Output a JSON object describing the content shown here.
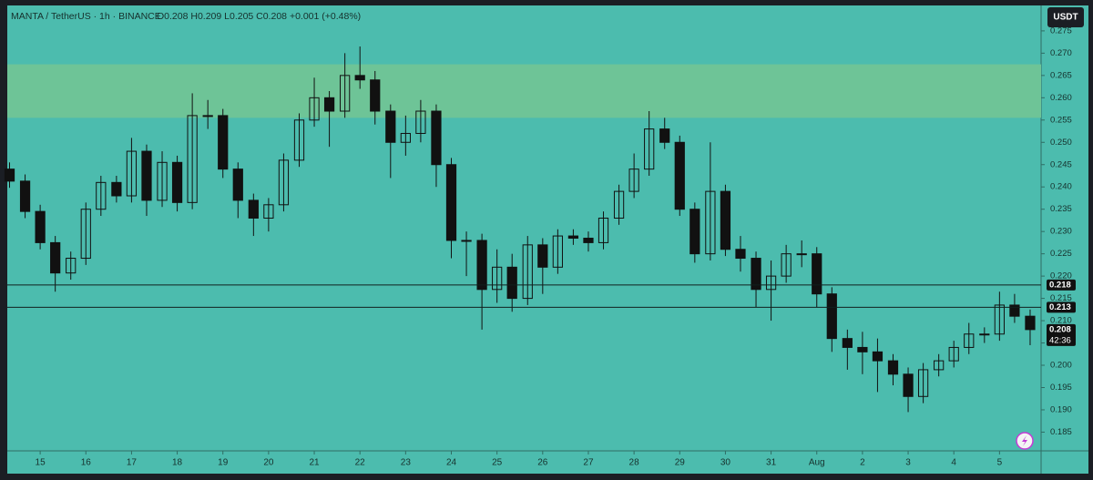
{
  "chart_data": {
    "type": "candlestick",
    "title": "MANTA / TetherUS · 1h · BINANCE",
    "ohlc_text": "O0.208 H0.209 L0.205 C0.208 +0.001 (+0.48%)",
    "currency": "USDT",
    "countdown": "42:36",
    "candle_color": "#111111",
    "background": "#4cbcae",
    "zone": {
      "range": [
        0.2555,
        0.2675
      ],
      "color": "#6ec497"
    },
    "levels": [
      0.218,
      0.213
    ],
    "last_price": 0.208,
    "x": [
      14.33,
      14.67,
      15,
      15.33,
      15.67,
      16,
      16.33,
      16.67,
      17,
      17.33,
      17.67,
      18,
      18.33,
      18.67,
      19,
      19.33,
      19.67,
      20,
      20.33,
      20.67,
      21,
      21.33,
      21.67,
      22,
      22.33,
      22.67,
      23,
      23.33,
      23.67,
      24,
      24.33,
      24.67,
      25,
      25.33,
      25.67,
      26,
      26.33,
      26.67,
      27,
      27.33,
      27.67,
      28,
      28.33,
      28.67,
      29,
      29.33,
      29.67,
      30,
      30.33,
      30.67,
      31,
      31.33,
      31.67,
      32,
      32.33,
      32.67,
      33,
      33.33,
      33.67,
      34,
      34.33,
      34.67,
      35,
      35.33,
      35.67,
      36,
      36.33,
      36.67
    ],
    "open": [
      0.244,
      0.2413,
      0.2345,
      0.2275,
      0.2207,
      0.224,
      0.235,
      0.241,
      0.238,
      0.248,
      0.237,
      0.2455,
      0.2365,
      0.256,
      0.256,
      0.244,
      0.237,
      0.233,
      0.236,
      0.246,
      0.255,
      0.26,
      0.257,
      0.265,
      0.264,
      0.257,
      0.25,
      0.252,
      0.257,
      0.245,
      0.228,
      0.228,
      0.217,
      0.222,
      0.215,
      0.227,
      0.222,
      0.229,
      0.2285,
      0.2275,
      0.233,
      0.239,
      0.244,
      0.253,
      0.25,
      0.235,
      0.225,
      0.239,
      0.226,
      0.224,
      0.217,
      0.22,
      0.225,
      0.225,
      0.216,
      0.206,
      0.204,
      0.203,
      0.201,
      0.198,
      0.193,
      0.199,
      0.201,
      0.204,
      0.207,
      0.207,
      0.2135,
      0.211
    ],
    "high": [
      0.2455,
      0.2428,
      0.236,
      0.229,
      0.2255,
      0.2365,
      0.2425,
      0.2425,
      0.251,
      0.2495,
      0.248,
      0.247,
      0.261,
      0.2595,
      0.2575,
      0.2455,
      0.2385,
      0.2375,
      0.2475,
      0.2565,
      0.2645,
      0.2615,
      0.27,
      0.2715,
      0.266,
      0.2585,
      0.256,
      0.2595,
      0.2585,
      0.2465,
      0.23,
      0.2295,
      0.226,
      0.225,
      0.229,
      0.2285,
      0.2305,
      0.2305,
      0.23,
      0.2345,
      0.2405,
      0.2475,
      0.257,
      0.2555,
      0.2515,
      0.2365,
      0.25,
      0.2405,
      0.229,
      0.2255,
      0.2235,
      0.227,
      0.228,
      0.2265,
      0.2175,
      0.208,
      0.2075,
      0.206,
      0.2025,
      0.1995,
      0.2005,
      0.2025,
      0.2055,
      0.2095,
      0.2085,
      0.2165,
      0.216,
      0.2125
    ],
    "low": [
      0.2398,
      0.233,
      0.226,
      0.2165,
      0.2192,
      0.2225,
      0.2335,
      0.2365,
      0.2365,
      0.2335,
      0.2355,
      0.2345,
      0.235,
      0.253,
      0.242,
      0.233,
      0.229,
      0.23,
      0.2345,
      0.2445,
      0.2535,
      0.249,
      0.2555,
      0.262,
      0.254,
      0.242,
      0.247,
      0.25,
      0.24,
      0.224,
      0.22,
      0.208,
      0.214,
      0.212,
      0.2135,
      0.216,
      0.2205,
      0.227,
      0.2255,
      0.226,
      0.2315,
      0.2375,
      0.2425,
      0.2485,
      0.2335,
      0.223,
      0.2235,
      0.2245,
      0.221,
      0.213,
      0.21,
      0.2185,
      0.222,
      0.213,
      0.203,
      0.199,
      0.198,
      0.194,
      0.1955,
      0.1895,
      0.1915,
      0.1975,
      0.1995,
      0.2025,
      0.205,
      0.2055,
      0.2095,
      0.2045
    ],
    "close": [
      0.2413,
      0.2345,
      0.2275,
      0.2207,
      0.224,
      0.235,
      0.241,
      0.238,
      0.248,
      0.237,
      0.2455,
      0.2365,
      0.256,
      0.256,
      0.244,
      0.237,
      0.233,
      0.236,
      0.246,
      0.255,
      0.26,
      0.257,
      0.265,
      0.264,
      0.257,
      0.25,
      0.252,
      0.257,
      0.245,
      0.228,
      0.228,
      0.217,
      0.222,
      0.215,
      0.227,
      0.222,
      0.229,
      0.2285,
      0.2275,
      0.233,
      0.239,
      0.244,
      0.253,
      0.25,
      0.235,
      0.225,
      0.239,
      0.226,
      0.224,
      0.217,
      0.22,
      0.225,
      0.225,
      0.216,
      0.206,
      0.204,
      0.203,
      0.201,
      0.198,
      0.193,
      0.199,
      0.201,
      0.204,
      0.207,
      0.207,
      0.2135,
      0.211,
      0.208
    ],
    "xlim": [
      14.28,
      36.91
    ],
    "xticks": [
      15,
      16,
      17,
      18,
      19,
      20,
      21,
      22,
      23,
      24,
      25,
      26,
      27,
      28,
      29,
      30,
      31,
      {
        "value": 32,
        "label": "Aug"
      },
      {
        "value": 33,
        "label": "2"
      },
      {
        "value": 34,
        "label": "3"
      },
      {
        "value": 35,
        "label": "4"
      },
      {
        "value": 36,
        "label": "5"
      }
    ],
    "ylim": [
      0.1808,
      0.2807
    ],
    "yticks": [
      0.185,
      {
        "value": 0.19,
        "label": "0.190"
      },
      0.195,
      {
        "value": 0.2,
        "label": "0.200"
      },
      0.205,
      {
        "value": 0.21,
        "label": "0.210"
      },
      0.215,
      {
        "value": 0.22,
        "label": "0.220"
      },
      0.225,
      {
        "value": 0.23,
        "label": "0.230"
      },
      0.235,
      {
        "value": 0.24,
        "label": "0.240"
      },
      0.245,
      {
        "value": 0.25,
        "label": "0.250"
      },
      0.255,
      {
        "value": 0.26,
        "label": "0.260"
      },
      0.265,
      {
        "value": 0.27,
        "label": "0.270"
      },
      0.275
    ]
  }
}
